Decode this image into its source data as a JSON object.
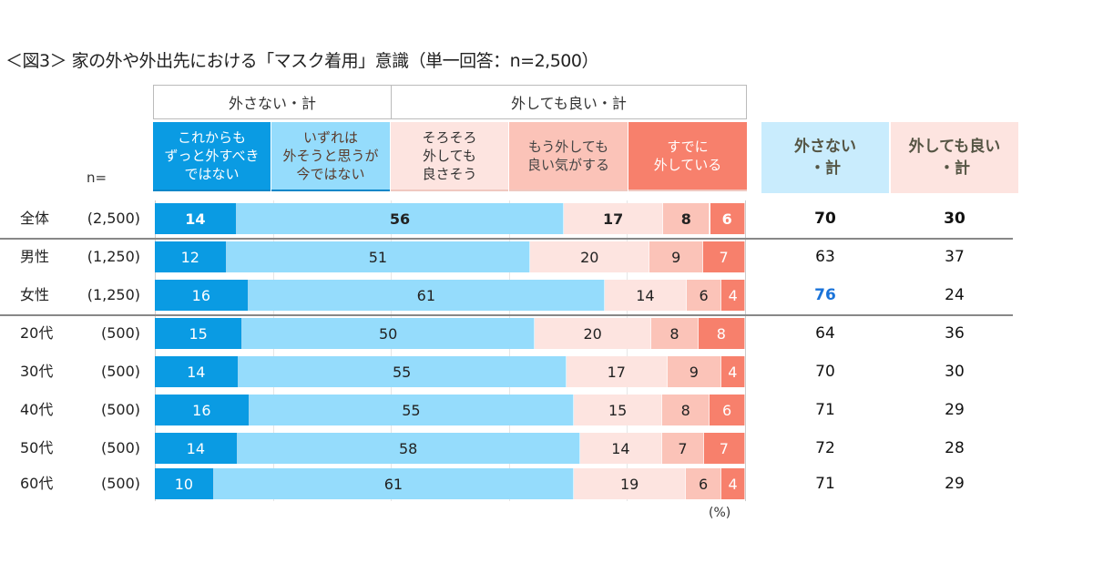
{
  "title": "＜図3＞ 家の外や外出先における「マスク着用」意識（単一回答：n=2,500）",
  "n_label": "n=",
  "unit": "(%)",
  "colors": {
    "c1": "#0a9be3",
    "c2": "#95dcfc",
    "c3": "#fde4e0",
    "c4": "#fbc3b8",
    "c5": "#f7806c",
    "total_highlight": "#1a73d9"
  },
  "groups": [
    {
      "label": "外さない・計"
    },
    {
      "label": "外しても良い・計"
    }
  ],
  "total_headers": [
    {
      "label": "外さない\n・計"
    },
    {
      "label": "外しても良い\n・計"
    }
  ],
  "chart_data": {
    "type": "bar",
    "stacked": true,
    "orientation": "horizontal",
    "xlim": [
      0,
      100
    ],
    "grid": true,
    "series": [
      {
        "name": "これからも\nずっと外すべき\nではない",
        "values": [
          14,
          12,
          16,
          15,
          14,
          16,
          14,
          10
        ]
      },
      {
        "name": "いずれは\n外そうと思うが\n今ではない",
        "values": [
          56,
          51,
          61,
          50,
          55,
          55,
          58,
          61
        ]
      },
      {
        "name": "そろそろ\n外しても\n良さそう",
        "values": [
          17,
          20,
          14,
          20,
          17,
          15,
          14,
          19
        ]
      },
      {
        "name": "もう外しても\n良い気がする",
        "values": [
          8,
          9,
          6,
          8,
          9,
          8,
          7,
          6
        ]
      },
      {
        "name": "すでに\n外している",
        "values": [
          6,
          7,
          4,
          8,
          4,
          6,
          7,
          4
        ]
      }
    ],
    "categories": [
      "全体",
      "男性",
      "女性",
      "20代",
      "30代",
      "40代",
      "50代",
      "60代"
    ],
    "n": [
      "(2,500)",
      "(1,250)",
      "(1,250)",
      "(500)",
      "(500)",
      "(500)",
      "(500)",
      "(500)"
    ],
    "totals_not_remove": [
      "70",
      "63",
      "76",
      "64",
      "70",
      "71",
      "72",
      "71"
    ],
    "totals_may_remove": [
      "30",
      "37",
      "24",
      "36",
      "30",
      "29",
      "28",
      "29"
    ],
    "highlight": {
      "row": 2,
      "column": "totals_not_remove"
    }
  }
}
